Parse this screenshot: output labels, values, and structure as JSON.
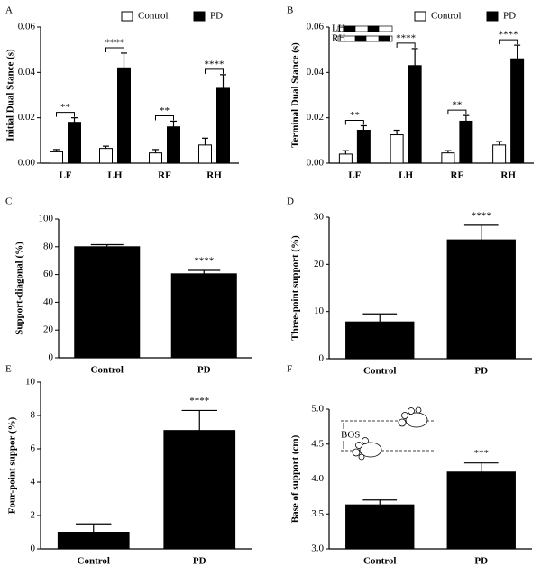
{
  "chart_data": [
    {
      "type": "bar",
      "label": "A",
      "ylabel": "Initial Dual Stance (s)",
      "categories": [
        "LF",
        "LH",
        "RF",
        "RH"
      ],
      "series": [
        {
          "name": "Control",
          "color": "#ffffff",
          "values": [
            0.005,
            0.0065,
            0.0045,
            0.008
          ],
          "errors": [
            0.001,
            0.001,
            0.0015,
            0.003
          ]
        },
        {
          "name": "PD",
          "color": "#000000",
          "values": [
            0.018,
            0.042,
            0.016,
            0.033
          ],
          "errors": [
            0.002,
            0.0065,
            0.0025,
            0.006
          ]
        }
      ],
      "significance": [
        "**",
        "****",
        "**",
        "****"
      ],
      "ylim": [
        0,
        0.06
      ],
      "yticks": [
        {
          "value": 0,
          "label": "0.00"
        },
        {
          "value": 0.02,
          "label": "0.02"
        },
        {
          "value": 0.04,
          "label": "0.04"
        },
        {
          "value": 0.06,
          "label": "0.06"
        }
      ]
    },
    {
      "type": "bar",
      "label": "B",
      "ylabel": "Terminal Dual Stance (s)",
      "categories": [
        "LF",
        "LH",
        "RF",
        "RH"
      ],
      "series": [
        {
          "name": "Control",
          "color": "#ffffff",
          "values": [
            0.004,
            0.0125,
            0.0045,
            0.008
          ],
          "errors": [
            0.0015,
            0.002,
            0.001,
            0.0015
          ]
        },
        {
          "name": "PD",
          "color": "#000000",
          "values": [
            0.0145,
            0.043,
            0.0185,
            0.046
          ],
          "errors": [
            0.002,
            0.0075,
            0.0025,
            0.006
          ]
        }
      ],
      "significance": [
        "**",
        "****",
        "**",
        "****"
      ],
      "inset_labels": [
        "LH",
        "RH"
      ],
      "ylim": [
        0,
        0.06
      ],
      "yticks": [
        {
          "value": 0,
          "label": "0.00"
        },
        {
          "value": 0.02,
          "label": "0.02"
        },
        {
          "value": 0.04,
          "label": "0.04"
        },
        {
          "value": 0.06,
          "label": "0.06"
        }
      ]
    },
    {
      "type": "bar",
      "label": "C",
      "ylabel": "Support-diagonal (%)",
      "categories": [
        "Control",
        "PD"
      ],
      "color": "#000000",
      "values": [
        80,
        60.5
      ],
      "errors": [
        1.5,
        2.5
      ],
      "significance": [
        null,
        "****"
      ],
      "ylim": [
        0,
        100
      ],
      "yticks": [
        0,
        20,
        40,
        60,
        80,
        100
      ]
    },
    {
      "type": "bar",
      "label": "D",
      "ylabel": "Three-point support (%)",
      "categories": [
        "Control",
        "PD"
      ],
      "color": "#000000",
      "values": [
        7.8,
        25.2
      ],
      "errors": [
        1.7,
        3.1
      ],
      "significance": [
        null,
        "****"
      ],
      "ylim": [
        0,
        30
      ],
      "yticks": [
        0,
        10,
        20,
        30
      ]
    },
    {
      "type": "bar",
      "label": "E",
      "ylabel": "Four-point suppor (%)",
      "categories": [
        "Control",
        "PD"
      ],
      "color": "#000000",
      "values": [
        1.0,
        7.1
      ],
      "errors": [
        0.5,
        1.2
      ],
      "significance": [
        null,
        "****"
      ],
      "ylim": [
        0,
        10
      ],
      "yticks": [
        0,
        2,
        4,
        6,
        8,
        10
      ]
    },
    {
      "type": "bar",
      "label": "F",
      "ylabel": "Base of support (cm)",
      "categories": [
        "Control",
        "PD"
      ],
      "color": "#000000",
      "values": [
        3.63,
        4.1
      ],
      "errors": [
        0.07,
        0.13
      ],
      "significance": [
        null,
        "***"
      ],
      "inset_label": "BOS",
      "ylim": [
        3.0,
        5.0
      ],
      "yticks": [
        {
          "value": 3.0,
          "label": "3.0"
        },
        {
          "value": 3.5,
          "label": "3.5"
        },
        {
          "value": 4.0,
          "label": "4.0"
        },
        {
          "value": 4.5,
          "label": "4.5"
        },
        {
          "value": 5.0,
          "label": "5.0"
        }
      ]
    }
  ]
}
